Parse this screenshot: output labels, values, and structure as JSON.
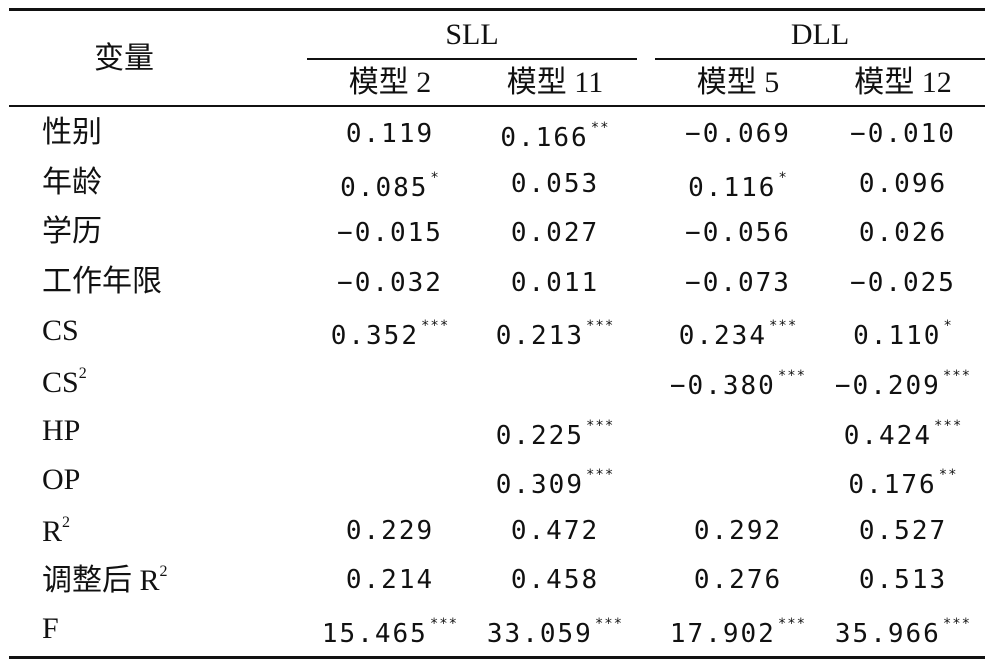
{
  "table": {
    "var_header": "变量",
    "groups": [
      "SLL",
      "DLL"
    ],
    "models": [
      "模型 2",
      "模型 11",
      "模型 5",
      "模型 12"
    ],
    "rows": [
      {
        "label": "性别",
        "sup": "",
        "cells": [
          [
            "0.119",
            ""
          ],
          [
            "0.166",
            "**"
          ],
          [
            "−0.069",
            ""
          ],
          [
            "−0.010",
            ""
          ]
        ]
      },
      {
        "label": "年龄",
        "sup": "",
        "cells": [
          [
            "0.085",
            "*"
          ],
          [
            "0.053",
            ""
          ],
          [
            "0.116",
            "*"
          ],
          [
            "0.096",
            ""
          ]
        ]
      },
      {
        "label": "学历",
        "sup": "",
        "cells": [
          [
            "−0.015",
            ""
          ],
          [
            "0.027",
            ""
          ],
          [
            "−0.056",
            ""
          ],
          [
            "0.026",
            ""
          ]
        ]
      },
      {
        "label": "工作年限",
        "sup": "",
        "cells": [
          [
            "−0.032",
            ""
          ],
          [
            "0.011",
            ""
          ],
          [
            "−0.073",
            ""
          ],
          [
            "−0.025",
            ""
          ]
        ]
      },
      {
        "label": "CS",
        "sup": "",
        "cells": [
          [
            "0.352",
            "***"
          ],
          [
            "0.213",
            "***"
          ],
          [
            "0.234",
            "***"
          ],
          [
            "0.110",
            "*"
          ]
        ]
      },
      {
        "label": "CS",
        "sup": "2",
        "cells": [
          [
            "",
            ""
          ],
          [
            "",
            ""
          ],
          [
            "−0.380",
            "***"
          ],
          [
            "−0.209",
            "***"
          ]
        ]
      },
      {
        "label": "HP",
        "sup": "",
        "cells": [
          [
            "",
            ""
          ],
          [
            "0.225",
            "***"
          ],
          [
            "",
            ""
          ],
          [
            "0.424",
            "***"
          ]
        ]
      },
      {
        "label": "OP",
        "sup": "",
        "cells": [
          [
            "",
            ""
          ],
          [
            "0.309",
            "***"
          ],
          [
            "",
            ""
          ],
          [
            "0.176",
            "**"
          ]
        ]
      },
      {
        "label": "R",
        "sup": "2",
        "cells": [
          [
            "0.229",
            ""
          ],
          [
            "0.472",
            ""
          ],
          [
            "0.292",
            ""
          ],
          [
            "0.527",
            ""
          ]
        ]
      },
      {
        "label": "调整后 R",
        "sup": "2",
        "cells": [
          [
            "0.214",
            ""
          ],
          [
            "0.458",
            ""
          ],
          [
            "0.276",
            ""
          ],
          [
            "0.513",
            ""
          ]
        ]
      },
      {
        "label": "F",
        "sup": "",
        "cells": [
          [
            "15.465",
            "***"
          ],
          [
            "33.059",
            "***"
          ],
          [
            "17.902",
            "***"
          ],
          [
            "35.966",
            "***"
          ]
        ]
      }
    ]
  }
}
